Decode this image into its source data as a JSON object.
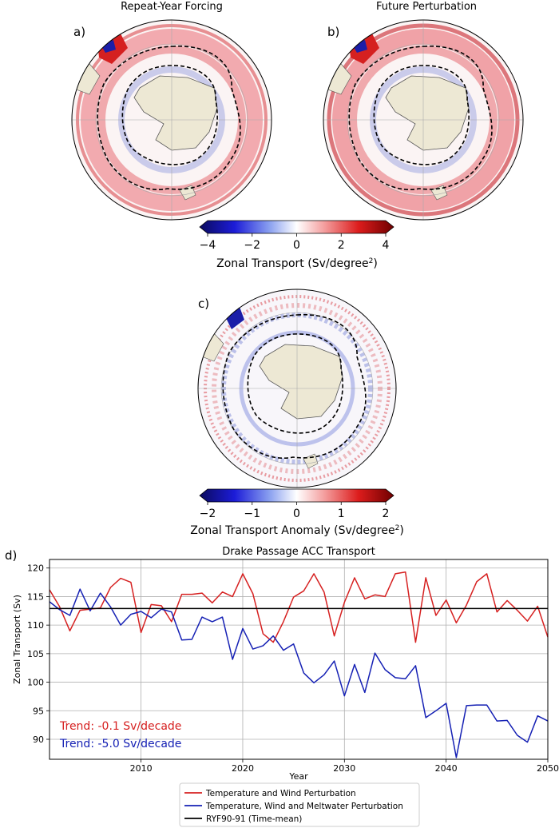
{
  "maps": [
    {
      "letter": "a)",
      "title": "Repeat-Year Forcing"
    },
    {
      "letter": "b)",
      "title": "Future Perturbation"
    },
    {
      "letter": "c)",
      "title": ""
    }
  ],
  "colorbars": [
    {
      "label_main": "Zonal Transport (Sv/degree",
      "label_sup": "2",
      "label_end": ")",
      "ticks": [
        "−4",
        "−2",
        "0",
        "2",
        "4"
      ],
      "min": -4,
      "max": 4
    },
    {
      "label_main": "Zonal Transport Anomaly (Sv/degree",
      "label_sup": "2",
      "label_end": ")",
      "ticks": [
        "−2",
        "−1",
        "0",
        "1",
        "2"
      ],
      "min": -2,
      "max": 2
    }
  ],
  "colors": {
    "land": "#ede8d4",
    "red": "#d62020",
    "blue": "#1520b4",
    "black": "#000000"
  },
  "chart_data": {
    "type": "line",
    "panel_letter": "d)",
    "title": "Drake Passage ACC Transport",
    "xlabel": "Year",
    "ylabel": "Zonal Transport (Sv)",
    "xlim": [
      2001,
      2050
    ],
    "ylim": [
      86.5,
      121.5
    ],
    "xticks": [
      2010,
      2020,
      2030,
      2040,
      2050
    ],
    "yticks": [
      90,
      95,
      100,
      105,
      110,
      115,
      120
    ],
    "grid": true,
    "legend_position": "bottom-outside",
    "x": [
      2001,
      2002,
      2003,
      2004,
      2005,
      2006,
      2007,
      2008,
      2009,
      2010,
      2011,
      2012,
      2013,
      2014,
      2015,
      2016,
      2017,
      2018,
      2019,
      2020,
      2021,
      2022,
      2023,
      2024,
      2025,
      2026,
      2027,
      2028,
      2029,
      2030,
      2031,
      2032,
      2033,
      2034,
      2035,
      2036,
      2037,
      2038,
      2039,
      2040,
      2041,
      2042,
      2043,
      2044,
      2045,
      2046,
      2047,
      2048,
      2049,
      2050
    ],
    "series": [
      {
        "name": "Temperature and Wind Perturbation",
        "color": "#d62020",
        "values": [
          116.2,
          113.2,
          109.0,
          112.6,
          112.8,
          113.0,
          116.6,
          118.2,
          117.5,
          108.7,
          113.6,
          113.4,
          110.6,
          115.4,
          115.4,
          115.6,
          113.9,
          115.8,
          115.0,
          119.0,
          115.5,
          108.5,
          107.0,
          110.6,
          114.9,
          116.0,
          119.0,
          115.8,
          108.1,
          114.0,
          118.3,
          114.6,
          115.3,
          115.0,
          119.0,
          119.3,
          107.0,
          118.3,
          111.7,
          114.4,
          110.4,
          113.5,
          117.6,
          119.0,
          112.3,
          114.3,
          112.6,
          110.7,
          113.3,
          107.9
        ]
      },
      {
        "name": "Temperature, Wind and Meltwater Perturbation",
        "color": "#1520b4",
        "values": [
          114.1,
          112.7,
          111.7,
          116.3,
          112.5,
          115.6,
          113.2,
          110.0,
          111.9,
          112.4,
          111.3,
          112.8,
          112.3,
          107.4,
          107.5,
          111.4,
          110.6,
          111.4,
          104.0,
          109.4,
          105.8,
          106.4,
          108.1,
          105.6,
          106.7,
          101.6,
          99.9,
          101.3,
          103.7,
          97.6,
          103.1,
          98.2,
          105.1,
          102.2,
          100.8,
          100.6,
          102.9,
          93.8,
          95.0,
          96.3,
          86.8,
          95.9,
          96.0,
          96.0,
          93.2,
          93.3,
          90.7,
          89.5,
          94.1,
          93.2
        ]
      },
      {
        "name": "RYF90-91 (Time-mean)",
        "color": "#000000",
        "constant": 112.9
      }
    ],
    "annotations": [
      {
        "text": "Trend: -0.1 Sv/decade",
        "color": "#d62020"
      },
      {
        "text": "Trend: -5.0 Sv/decade",
        "color": "#1520b4"
      }
    ]
  }
}
